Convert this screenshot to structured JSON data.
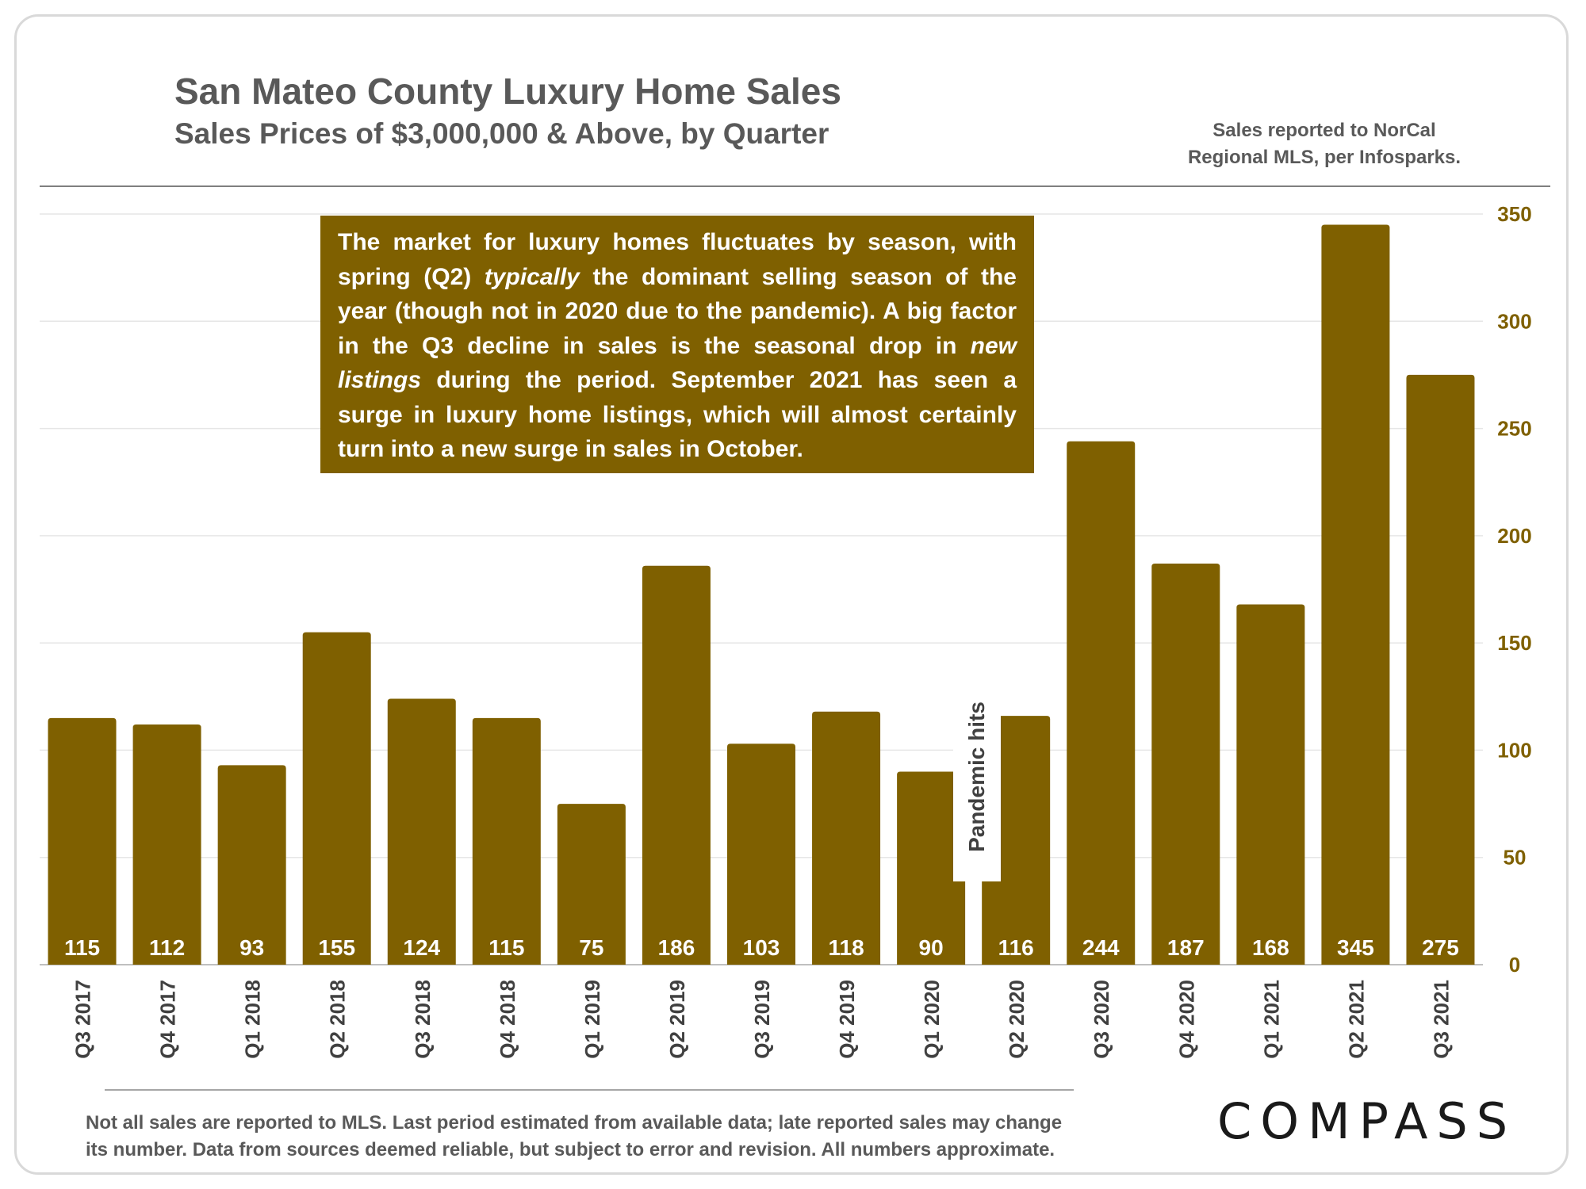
{
  "header": {
    "title": "San Mateo County Luxury Home Sales",
    "subtitle": "Sales Prices of $3,000,000 & Above, by Quarter",
    "source_line1": "Sales reported to NorCal",
    "source_line2": "Regional MLS, per Infosparks."
  },
  "annotation": {
    "p1": "The market for luxury homes fluctuates by season, with spring (Q2) ",
    "p1_em": "typically",
    "p2": " the dominant selling season of the year (though not in 2020 due to the pandemic).  A big factor in the Q3 decline in sales is the seasonal drop in ",
    "p2_em": "new listings",
    "p3": " during the period. September 2021 has seen a surge in luxury home listings, which will almost certainly turn into a new surge in sales in October."
  },
  "pandemic_note": "Pandemic hits",
  "footnote": {
    "line1": "Not all sales are reported to MLS. Last period estimated from available data; late reported sales may change",
    "line2": "its number. Data from sources deemed reliable, but subject to error and revision. All numbers  approximate."
  },
  "logo": "COMPASS",
  "colors": {
    "bar": "#7f6000",
    "axis_text": "#7f6000",
    "gridline": "#e6e6e6",
    "label_text": "#ffffff"
  },
  "chart_data": {
    "type": "bar",
    "title": "San Mateo County Luxury Home Sales",
    "subtitle": "Sales Prices of $3,000,000 & Above, by Quarter",
    "categories": [
      "Q3 2017",
      "Q4 2017",
      "Q1 2018",
      "Q2 2018",
      "Q3 2018",
      "Q4 2018",
      "Q1 2019",
      "Q2 2019",
      "Q3 2019",
      "Q4 2019",
      "Q1 2020",
      "Q2 2020",
      "Q3 2020",
      "Q4 2020",
      "Q1 2021",
      "Q2 2021",
      "Q3 2021"
    ],
    "values": [
      115,
      112,
      93,
      155,
      124,
      115,
      75,
      186,
      103,
      118,
      90,
      116,
      244,
      187,
      168,
      345,
      275
    ],
    "data_labels": [
      "115",
      "112",
      "93",
      "155",
      "124",
      "115",
      "75",
      "186",
      "103",
      "118",
      "90",
      "116",
      "244",
      "187",
      "168",
      "345",
      "275"
    ],
    "ylim": [
      0,
      350
    ],
    "yticks": [
      0,
      50,
      100,
      150,
      200,
      250,
      300,
      350
    ],
    "ytick_labels": [
      "0",
      "50",
      "100",
      "150",
      "200",
      "250",
      "300",
      "350"
    ],
    "y_axis_side": "right",
    "grid": true,
    "legend": false
  }
}
